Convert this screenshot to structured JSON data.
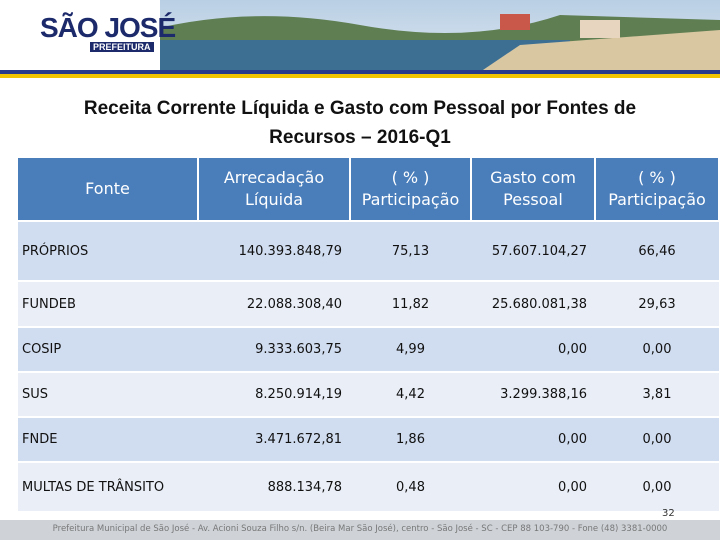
{
  "header": {
    "logo_title": "SÃO JOSÉ",
    "logo_subtitle": "PREFEITURA"
  },
  "title": "Receita Corrente Líquida e Gasto com Pessoal por Fontes de Recursos – 2016-Q1",
  "table": {
    "columns": [
      "Fonte",
      "Arrecadação Líquida",
      "( % ) Participação",
      "Gasto com Pessoal",
      "( % ) Participação"
    ],
    "rows": [
      [
        "PRÓPRIOS",
        "140.393.848,79",
        "75,13",
        "57.607.104,27",
        "66,46"
      ],
      [
        "FUNDEB",
        "22.088.308,40",
        "11,82",
        "25.680.081,38",
        "29,63"
      ],
      [
        "COSIP",
        "9.333.603,75",
        "4,99",
        "0,00",
        "0,00"
      ],
      [
        "SUS",
        "8.250.914,19",
        "4,42",
        "3.299.388,16",
        "3,81"
      ],
      [
        "FNDE",
        "3.471.672,81",
        "1,86",
        "0,00",
        "0,00"
      ],
      [
        "MULTAS DE TRÂNSITO",
        "888.134,78",
        "0,48",
        "0,00",
        "0,00"
      ]
    ]
  },
  "page_number": "32",
  "footer": "Prefeitura Municipal de São José - Av. Acioni Souza Filho s/n. (Beira Mar São José), centro - São José - SC - CEP 88 103-790 - Fone (48) 3381-0000"
}
